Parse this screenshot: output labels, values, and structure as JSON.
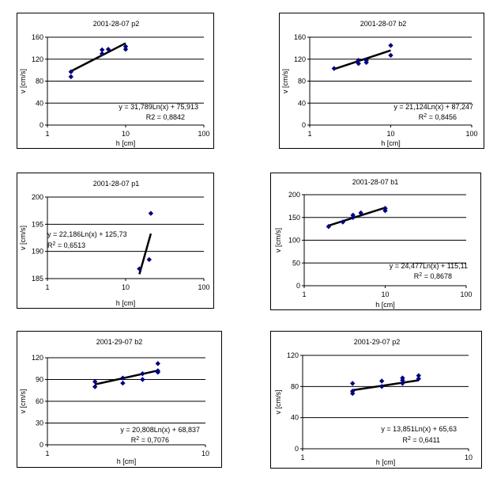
{
  "chart_data": [
    {
      "type": "scatter",
      "title": "2001-28-07 p2",
      "xlabel": "h [cm]",
      "ylabel": "v [cm/s]",
      "xscale": "log",
      "xlim": [
        1,
        100
      ],
      "ylim": [
        0,
        160
      ],
      "xticks": [
        "1",
        "10",
        "100"
      ],
      "yticks": [
        "0",
        "40",
        "80",
        "120",
        "160"
      ],
      "grid": "horizontal",
      "marker_color": "#000080",
      "points": [
        [
          2,
          88
        ],
        [
          2,
          97
        ],
        [
          5,
          130
        ],
        [
          5,
          137
        ],
        [
          6,
          138
        ],
        [
          10,
          138
        ],
        [
          10,
          143
        ]
      ],
      "trendline": {
        "a": 31.789,
        "b": 75.913,
        "x_range": [
          2,
          10
        ]
      },
      "equation": "y = 31,789Ln(x) + 75,913",
      "r2_label": "R2 = 0,8842"
    },
    {
      "type": "scatter",
      "title": "2001-28-07 b2",
      "xlabel": "h [cm]",
      "ylabel": "v [cm/s]",
      "xscale": "log",
      "xlim": [
        1,
        100
      ],
      "ylim": [
        0,
        160
      ],
      "xticks": [
        "1",
        "10",
        "100"
      ],
      "yticks": [
        "0",
        "40",
        "80",
        "120",
        "160"
      ],
      "grid": "horizontal",
      "marker_color": "#000080",
      "points": [
        [
          2,
          103
        ],
        [
          4,
          112
        ],
        [
          4,
          118
        ],
        [
          5,
          114
        ],
        [
          5,
          118
        ],
        [
          10,
          127
        ],
        [
          10,
          145
        ]
      ],
      "trendline": {
        "a": 21.124,
        "b": 87.247,
        "x_range": [
          2,
          10
        ]
      },
      "equation": "y = 21,124Ln(x) + 87,247",
      "r2_label": "R² = 0,8456"
    },
    {
      "type": "scatter",
      "title": "2001-28-07 p1",
      "xlabel": "h [cm]",
      "ylabel": "v [cm/s]",
      "xscale": "log",
      "xlim": [
        1,
        100
      ],
      "ylim": [
        185,
        200
      ],
      "xticks": [
        "1",
        "10",
        "100"
      ],
      "yticks": [
        "185",
        "190",
        "195",
        "200"
      ],
      "grid": "horizontal",
      "marker_color": "#000080",
      "points": [
        [
          15,
          186.8
        ],
        [
          20,
          188.5
        ],
        [
          21,
          197
        ]
      ],
      "trendline": {
        "a": 22.186,
        "b": 125.73,
        "x_range": [
          15,
          21
        ]
      },
      "equation": "y = 22,186Ln(x) + 125,73",
      "r2_label": "R² = 0,6513"
    },
    {
      "type": "scatter",
      "title": "2001-28-07 b1",
      "xlabel": "h [cm]",
      "ylabel": "v [cm/s]",
      "xscale": "log",
      "xlim": [
        1,
        100
      ],
      "ylim": [
        0,
        200
      ],
      "xticks": [
        "1",
        "10",
        "100"
      ],
      "yticks": [
        "0",
        "50",
        "100",
        "150",
        "200"
      ],
      "grid": "horizontal",
      "marker_color": "#000080",
      "points": [
        [
          2,
          130
        ],
        [
          3,
          140
        ],
        [
          4,
          150
        ],
        [
          4,
          155
        ],
        [
          5,
          160
        ],
        [
          10,
          165
        ],
        [
          10,
          170
        ]
      ],
      "trendline": {
        "a": 24.477,
        "b": 115.11,
        "x_range": [
          2,
          10
        ]
      },
      "equation": "y = 24,477Ln(x) + 115,11",
      "r2_label": "R² = 0,8678"
    },
    {
      "type": "scatter",
      "title": "2001-29-07 b2",
      "xlabel": "h [cm]",
      "ylabel": "v [cm/s]",
      "xscale": "log",
      "xlim": [
        1,
        10
      ],
      "ylim": [
        0,
        120
      ],
      "xticks": [
        "1",
        "10"
      ],
      "yticks": [
        "0",
        "30",
        "60",
        "90",
        "120"
      ],
      "grid": "horizontal",
      "marker_color": "#000080",
      "points": [
        [
          2,
          80
        ],
        [
          2,
          87
        ],
        [
          3,
          85
        ],
        [
          3,
          92
        ],
        [
          4,
          90
        ],
        [
          4,
          98
        ],
        [
          5,
          100
        ],
        [
          5,
          112
        ],
        [
          5,
          102
        ]
      ],
      "trendline": {
        "a": 20.808,
        "b": 68.837,
        "x_range": [
          2,
          5
        ]
      },
      "equation": "y = 20,808Ln(x) + 68,837",
      "r2_label": "R² = 0,7076"
    },
    {
      "type": "scatter",
      "title": "2001-29-07 p2",
      "xlabel": "h [cm]",
      "ylabel": "v [cm/s]",
      "xscale": "log",
      "xlim": [
        1,
        10
      ],
      "ylim": [
        0,
        120
      ],
      "xticks": [
        "1",
        "10"
      ],
      "yticks": [
        "0",
        "40",
        "80",
        "120"
      ],
      "grid": "horizontal",
      "marker_color": "#000080",
      "points": [
        [
          2,
          71
        ],
        [
          2,
          74
        ],
        [
          2,
          84
        ],
        [
          3,
          80
        ],
        [
          3,
          87
        ],
        [
          4,
          84
        ],
        [
          4,
          88
        ],
        [
          4,
          91
        ],
        [
          5,
          90
        ],
        [
          5,
          94
        ]
      ],
      "trendline": {
        "a": 13.851,
        "b": 65.63,
        "x_range": [
          2,
          5
        ]
      },
      "equation": "y = 13,851Ln(x) + 65,63",
      "r2_label": "R² = 0,6411"
    }
  ]
}
